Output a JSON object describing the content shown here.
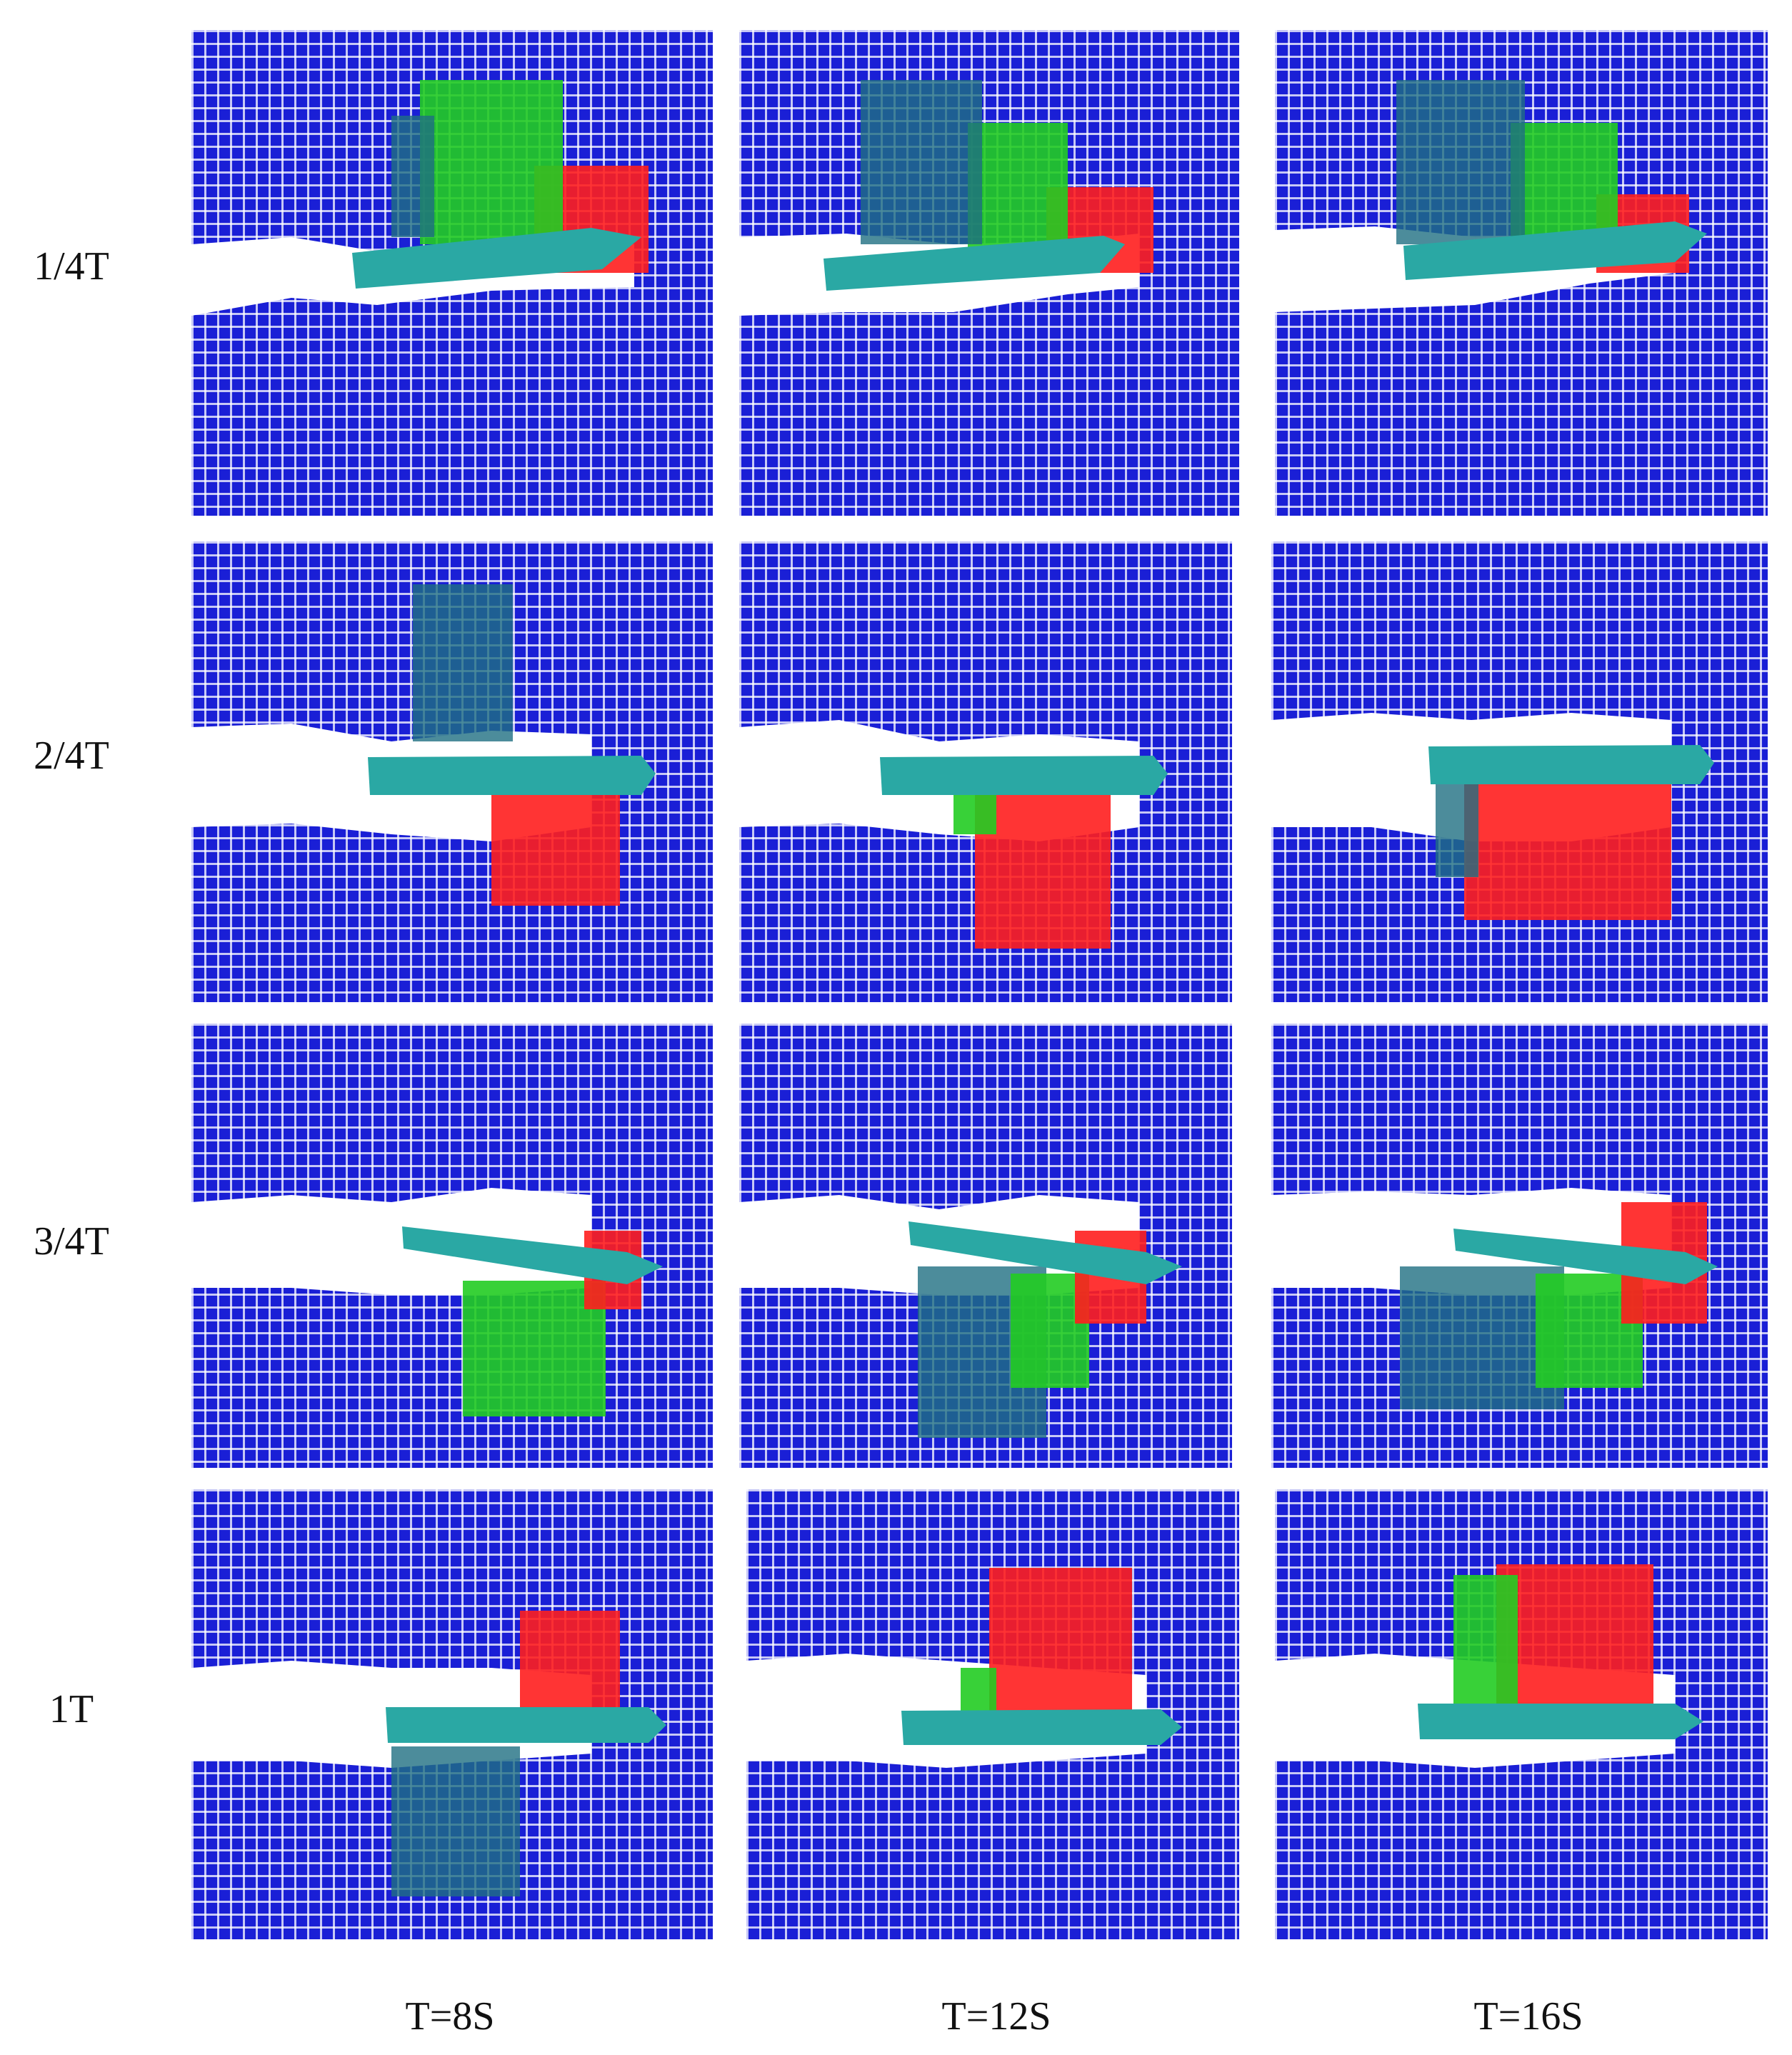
{
  "row_labels": [
    "1/4T",
    "2/4T",
    "3/4T",
    "1T"
  ],
  "col_labels": [
    "T=8S",
    "T=12S",
    "T=16S"
  ],
  "colors": {
    "particle_blue": "#1a1fd6",
    "hull_teal": "#2aa8a4",
    "red_zone": "#ff1e1e",
    "green_zone": "#22cc22",
    "dark_teal_zone": "#1f6f82",
    "wake_white": "#ffffff"
  },
  "panels": [
    {
      "id": "r1c1",
      "row": "1/4T",
      "col": "T=8S"
    },
    {
      "id": "r1c2",
      "row": "1/4T",
      "col": "T=12S"
    },
    {
      "id": "r1c3",
      "row": "1/4T",
      "col": "T=16S"
    },
    {
      "id": "r2c1",
      "row": "2/4T",
      "col": "T=8S"
    },
    {
      "id": "r2c2",
      "row": "2/4T",
      "col": "T=12S"
    },
    {
      "id": "r2c3",
      "row": "2/4T",
      "col": "T=16S"
    },
    {
      "id": "r3c1",
      "row": "3/4T",
      "col": "T=8S"
    },
    {
      "id": "r3c2",
      "row": "3/4T",
      "col": "T=12S"
    },
    {
      "id": "r3c3",
      "row": "3/4T",
      "col": "T=16S"
    },
    {
      "id": "r4c1",
      "row": "1T",
      "col": "T=8S"
    },
    {
      "id": "r4c2",
      "row": "1T",
      "col": "T=12S"
    },
    {
      "id": "r4c3",
      "row": "1T",
      "col": "T=16S"
    }
  ]
}
